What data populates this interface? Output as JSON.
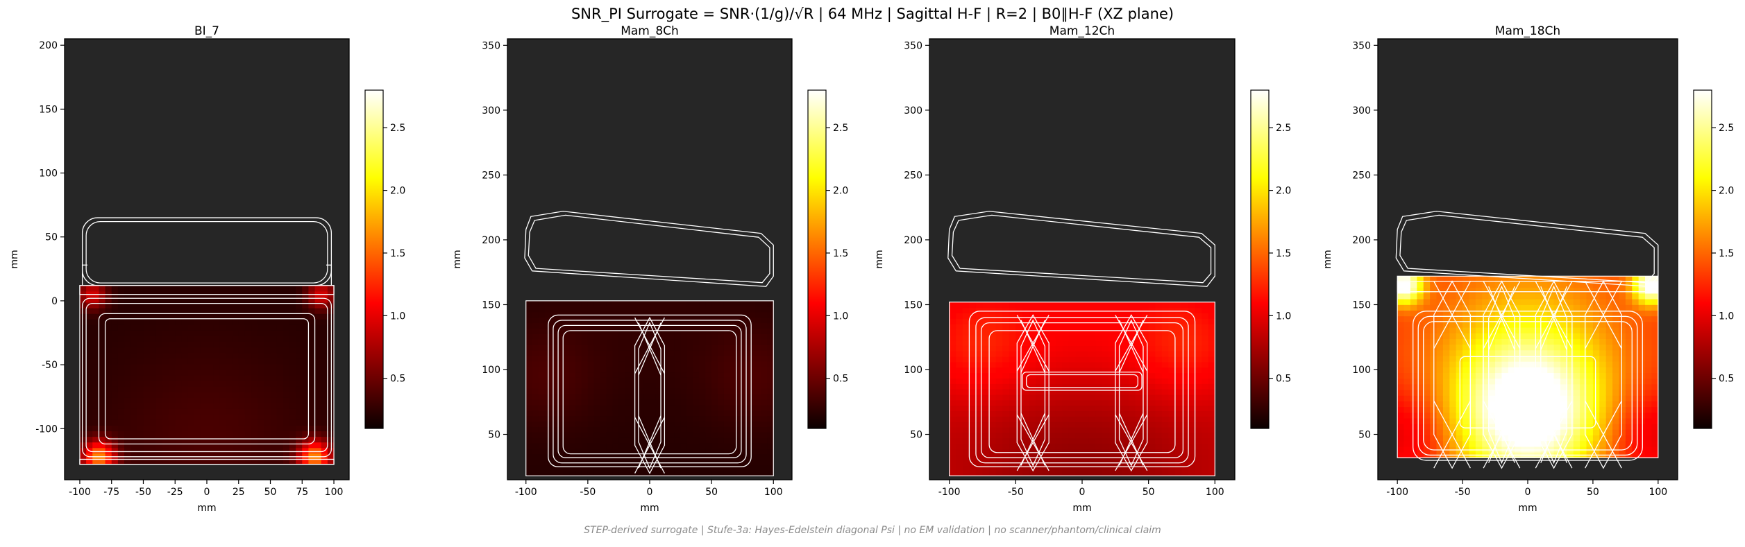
{
  "figure": {
    "title": "SNR_PI Surrogate = SNR·(1/g)/√R | 64 MHz | Sagittal H-F | R=2 | B0∥H-F (XZ plane)",
    "footer": "STEP-derived surrogate | Stufe-3a: Hayes-Edelstein diagonal Psi | no EM validation | no scanner/phantom/clinical claim"
  },
  "colors": {
    "background_region": "#262626",
    "outline": "#ffffff",
    "colormap": "hot"
  },
  "chart_data": [
    {
      "type": "heatmap",
      "title": "BI_7",
      "xlabel": "mm",
      "ylabel": "mm",
      "xlim": [
        -112,
        112
      ],
      "ylim": [
        -140,
        205
      ],
      "xticks": [
        -100,
        -75,
        -50,
        -25,
        0,
        25,
        50,
        75,
        100
      ],
      "yticks": [
        -100,
        -50,
        0,
        50,
        100,
        150,
        200
      ],
      "colorbar": {
        "ticks": [
          0.5,
          1.0,
          1.5,
          2.0,
          2.5
        ],
        "vmin": 0.1,
        "vmax": 2.8
      },
      "data_region": {
        "x": [
          -100,
          100
        ],
        "y": [
          -128,
          12
        ]
      },
      "field": {
        "base": 0.2,
        "hotspots": [
          {
            "x": -85,
            "y": -122,
            "amp": 1.4,
            "r": 9
          },
          {
            "x": 85,
            "y": -122,
            "amp": 1.4,
            "r": 9
          },
          {
            "x": -90,
            "y": 5,
            "amp": 0.7,
            "r": 8
          },
          {
            "x": 90,
            "y": 5,
            "amp": 0.7,
            "r": 8
          },
          {
            "x": 0,
            "y": -115,
            "amp": 0.15,
            "r": 60
          }
        ]
      },
      "coil_rects": [
        {
          "x": [
            -98,
            98
          ],
          "y": [
            -122,
            2
          ],
          "r": 6
        },
        {
          "x": -95,
          "x2": 95,
          "y": [
            -118,
            -2
          ],
          "r": 5
        },
        {
          "x": [
            -85,
            85
          ],
          "y": [
            -112,
            -10
          ],
          "r": 5
        },
        {
          "x": [
            -80,
            80
          ],
          "y": [
            -108,
            -14
          ],
          "r": 4
        },
        {
          "x": [
            -100,
            100
          ],
          "y": [
            -128,
            -124
          ],
          "r": 0
        },
        {
          "x": [
            -100,
            100
          ],
          "y": [
            5,
            12
          ],
          "r": 0
        },
        {
          "x": [
            -98,
            98
          ],
          "y": [
            12,
            65
          ],
          "r": 12
        },
        {
          "x": [
            -95,
            95
          ],
          "y": [
            14,
            62
          ],
          "r": 11
        }
      ],
      "coil_lines": [
        [
          [
            -98,
            12
          ],
          [
            -98,
            28
          ],
          [
            -94,
            28
          ]
        ],
        [
          [
            98,
            12
          ],
          [
            98,
            28
          ],
          [
            94,
            28
          ]
        ]
      ]
    },
    {
      "type": "heatmap",
      "title": "Mam_8Ch",
      "xlabel": "mm",
      "ylabel": "mm",
      "xlim": [
        -115,
        115
      ],
      "ylim": [
        15,
        355
      ],
      "xticks": [
        -100,
        -50,
        0,
        50,
        100
      ],
      "yticks": [
        50,
        100,
        150,
        200,
        250,
        300,
        350
      ],
      "colorbar": {
        "ticks": [
          0.5,
          1.0,
          1.5,
          2.0,
          2.5
        ],
        "vmin": 0.1,
        "vmax": 2.8
      },
      "data_region": {
        "x": [
          -100,
          100
        ],
        "y": [
          18,
          153
        ]
      },
      "field": {
        "base": 0.2,
        "hotspots": [
          {
            "x": -85,
            "y": 95,
            "amp": 0.15,
            "r": 30
          },
          {
            "x": 85,
            "y": 95,
            "amp": 0.15,
            "r": 30
          },
          {
            "x": 0,
            "y": 140,
            "amp": 0.05,
            "r": 50
          }
        ]
      },
      "coil_rects": [
        {
          "x": [
            -82,
            82
          ],
          "y": [
            25,
            142
          ],
          "r": 8
        },
        {
          "x": [
            -78,
            78
          ],
          "y": [
            28,
            138
          ],
          "r": 7
        },
        {
          "x": [
            -74,
            74
          ],
          "y": [
            32,
            134
          ],
          "r": 6
        },
        {
          "x": [
            -70,
            70
          ],
          "y": [
            35,
            130
          ],
          "r": 6
        }
      ],
      "coil_hex": [
        {
          "cx": 0,
          "y0": 20,
          "y1": 140,
          "w": 12
        },
        {
          "cx": 0,
          "y0": 24,
          "y1": 136,
          "w": 9
        }
      ],
      "coil_top": [
        {
          "pts": [
            [
              -100,
              208
            ],
            [
              -96,
              218
            ],
            [
              -70,
              222
            ],
            [
              90,
              205
            ],
            [
              100,
              196
            ],
            [
              100,
              172
            ],
            [
              94,
              164
            ],
            [
              -95,
              176
            ],
            [
              -101,
              186
            ]
          ]
        },
        {
          "pts": [
            [
              -97,
              206
            ],
            [
              -93,
              215
            ],
            [
              -68,
              219
            ],
            [
              88,
              202
            ],
            [
              97,
              194
            ],
            [
              97,
              174
            ],
            [
              91,
              167
            ],
            [
              -92,
              178
            ],
            [
              -98,
              188
            ]
          ]
        }
      ]
    },
    {
      "type": "heatmap",
      "title": "Mam_12Ch",
      "xlabel": "mm",
      "ylabel": "mm",
      "xlim": [
        -115,
        115
      ],
      "ylim": [
        15,
        355
      ],
      "xticks": [
        -100,
        -50,
        0,
        50,
        100
      ],
      "yticks": [
        50,
        100,
        150,
        200,
        250,
        300,
        350
      ],
      "colorbar": {
        "ticks": [
          0.5,
          1.0,
          1.5,
          2.0,
          2.5
        ],
        "vmin": 0.1,
        "vmax": 2.8
      },
      "data_region": {
        "x": [
          -100,
          100
        ],
        "y": [
          18,
          152
        ]
      },
      "field": {
        "base": 0.85,
        "hotspots": [
          {
            "x": -80,
            "y": 120,
            "amp": 0.35,
            "r": 30
          },
          {
            "x": 80,
            "y": 120,
            "amp": 0.35,
            "r": 30
          },
          {
            "x": 0,
            "y": 135,
            "amp": 0.25,
            "r": 50
          },
          {
            "x": 0,
            "y": 30,
            "amp": -0.25,
            "r": 60
          }
        ]
      },
      "coil_rects": [
        {
          "x": [
            -85,
            85
          ],
          "y": [
            25,
            145
          ],
          "r": 8
        },
        {
          "x": [
            -80,
            80
          ],
          "y": [
            28,
            140
          ],
          "r": 7
        },
        {
          "x": [
            -76,
            76
          ],
          "y": [
            32,
            136
          ],
          "r": 6
        },
        {
          "x": [
            -70,
            70
          ],
          "y": [
            36,
            130
          ],
          "r": 6
        },
        {
          "x": [
            -45,
            45
          ],
          "y": [
            84,
            98
          ],
          "r": 3
        },
        {
          "x": [
            -42,
            42
          ],
          "y": [
            86,
            96
          ],
          "r": 3
        }
      ],
      "coil_hex": [
        {
          "cx": -37,
          "y0": 22,
          "y1": 142,
          "w": 12
        },
        {
          "cx": 37,
          "y0": 22,
          "y1": 142,
          "w": 12
        },
        {
          "cx": -37,
          "y0": 26,
          "y1": 138,
          "w": 9
        },
        {
          "cx": 37,
          "y0": 26,
          "y1": 138,
          "w": 9
        }
      ],
      "coil_top": [
        {
          "pts": [
            [
              -100,
              208
            ],
            [
              -96,
              218
            ],
            [
              -70,
              222
            ],
            [
              90,
              205
            ],
            [
              100,
              196
            ],
            [
              100,
              172
            ],
            [
              94,
              164
            ],
            [
              -95,
              176
            ],
            [
              -101,
              186
            ]
          ]
        },
        {
          "pts": [
            [
              -97,
              206
            ],
            [
              -93,
              215
            ],
            [
              -68,
              219
            ],
            [
              88,
              202
            ],
            [
              97,
              194
            ],
            [
              97,
              174
            ],
            [
              91,
              167
            ],
            [
              -92,
              178
            ],
            [
              -98,
              188
            ]
          ]
        }
      ]
    },
    {
      "type": "heatmap",
      "title": "Mam_18Ch",
      "xlabel": "mm",
      "ylabel": "mm",
      "xlim": [
        -115,
        115
      ],
      "ylim": [
        15,
        355
      ],
      "xticks": [
        -100,
        -50,
        0,
        50,
        100
      ],
      "yticks": [
        50,
        100,
        150,
        200,
        250,
        300,
        350
      ],
      "colorbar": {
        "ticks": [
          0.5,
          1.0,
          1.5,
          2.0,
          2.5
        ],
        "vmin": 0.1,
        "vmax": 2.8
      },
      "data_region": {
        "x": [
          -100,
          100
        ],
        "y": [
          32,
          172
        ]
      },
      "field": {
        "base": 1.3,
        "hotspots": [
          {
            "x": 0,
            "y": 65,
            "amp": 1.6,
            "r": 40
          },
          {
            "x": 0,
            "y": 120,
            "amp": 0.5,
            "r": 50
          },
          {
            "x": -95,
            "y": 165,
            "amp": 1.6,
            "r": 10
          },
          {
            "x": 95,
            "y": 165,
            "amp": 1.6,
            "r": 10
          },
          {
            "x": -95,
            "y": 50,
            "amp": -0.4,
            "r": 25
          },
          {
            "x": 95,
            "y": 50,
            "amp": -0.4,
            "r": 25
          }
        ]
      },
      "coil_rects": [
        {
          "x": [
            -88,
            88
          ],
          "y": [
            30,
            145
          ],
          "r": 10
        },
        {
          "x": [
            -84,
            84
          ],
          "y": [
            34,
            141
          ],
          "r": 9
        },
        {
          "x": [
            -80,
            80
          ],
          "y": [
            38,
            137
          ],
          "r": 8
        },
        {
          "x": [
            -100,
            100
          ],
          "y": [
            160,
            168
          ],
          "r": 0
        },
        {
          "x": [
            -52,
            52
          ],
          "y": [
            55,
            110
          ],
          "r": 4
        }
      ],
      "coil_hex": [
        {
          "cx": -58,
          "y0": 24,
          "y1": 168,
          "w": 14
        },
        {
          "cx": -20,
          "y0": 24,
          "y1": 168,
          "w": 14
        },
        {
          "cx": 20,
          "y0": 24,
          "y1": 168,
          "w": 14
        },
        {
          "cx": 58,
          "y0": 24,
          "y1": 168,
          "w": 14
        },
        {
          "cx": -20,
          "y0": 28,
          "y1": 164,
          "w": 10
        },
        {
          "cx": 20,
          "y0": 28,
          "y1": 164,
          "w": 10
        }
      ],
      "coil_top": [
        {
          "pts": [
            [
              -100,
              208
            ],
            [
              -96,
              218
            ],
            [
              -70,
              222
            ],
            [
              90,
              205
            ],
            [
              100,
              196
            ],
            [
              100,
              172
            ],
            [
              94,
              164
            ],
            [
              -95,
              176
            ],
            [
              -101,
              186
            ]
          ]
        },
        {
          "pts": [
            [
              -97,
              206
            ],
            [
              -93,
              215
            ],
            [
              -68,
              219
            ],
            [
              88,
              202
            ],
            [
              97,
              194
            ],
            [
              97,
              174
            ],
            [
              91,
              167
            ],
            [
              -92,
              178
            ],
            [
              -98,
              188
            ]
          ]
        }
      ]
    }
  ]
}
